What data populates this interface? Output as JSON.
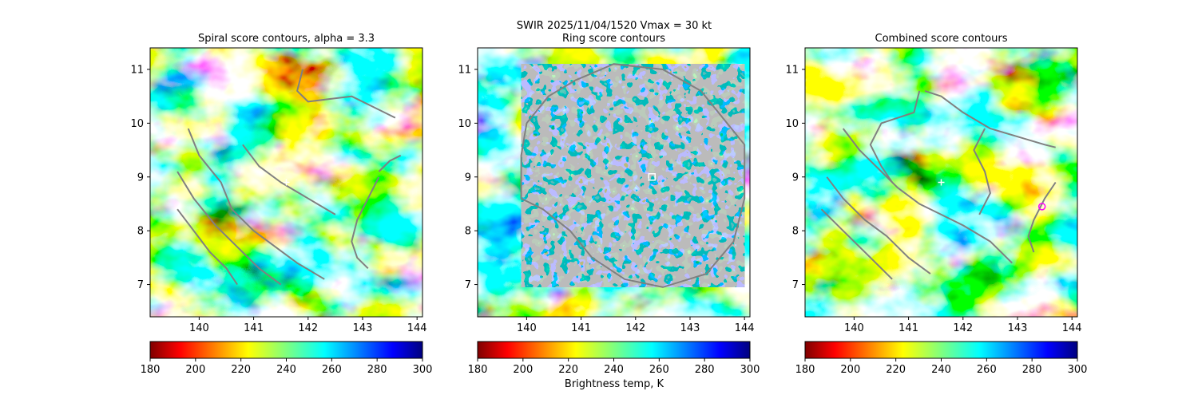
{
  "figure": {
    "suptitle_line1": "SWIR  2025/11/04/1520    Vmax = 30 kt",
    "colorbar_label": "Brightness temp, K"
  },
  "colorbar": {
    "colormap": "jet_r",
    "range": [
      180,
      300
    ],
    "ticks": [
      "180",
      "200",
      "220",
      "240",
      "260",
      "280",
      "300"
    ]
  },
  "chart_data": [
    {
      "type": "heatmap",
      "title": "Spiral score contours, alpha =  3.3",
      "xlim": [
        139.1,
        144.1
      ],
      "ylim": [
        6.4,
        11.4
      ],
      "xticks": [
        "140",
        "141",
        "142",
        "143",
        "144"
      ],
      "yticks": [
        "7",
        "8",
        "9",
        "10",
        "11"
      ],
      "center_marker": {
        "symbol": "plus",
        "color": "#ffffff",
        "x": 141.6,
        "y": 8.9
      },
      "contour_color": "#808080",
      "contours": [
        [
          [
            139.8,
            9.9
          ],
          [
            140.0,
            9.4
          ],
          [
            140.4,
            8.9
          ],
          [
            140.6,
            8.4
          ],
          [
            141.0,
            8.0
          ],
          [
            141.4,
            7.7
          ],
          [
            141.8,
            7.4
          ],
          [
            142.3,
            7.1
          ]
        ],
        [
          [
            139.6,
            9.1
          ],
          [
            139.9,
            8.6
          ],
          [
            140.3,
            8.1
          ],
          [
            140.7,
            7.7
          ],
          [
            141.1,
            7.3
          ],
          [
            141.5,
            7.0
          ]
        ],
        [
          [
            139.6,
            8.4
          ],
          [
            139.9,
            8.0
          ],
          [
            140.2,
            7.6
          ],
          [
            140.5,
            7.3
          ],
          [
            140.7,
            7.0
          ]
        ],
        [
          [
            140.8,
            9.6
          ],
          [
            141.1,
            9.2
          ],
          [
            141.5,
            8.9
          ],
          [
            142.0,
            8.6
          ],
          [
            142.5,
            8.3
          ]
        ],
        [
          [
            141.9,
            11.0
          ],
          [
            141.8,
            10.6
          ],
          [
            142.0,
            10.4
          ],
          [
            142.4,
            10.45
          ],
          [
            142.8,
            10.5
          ],
          [
            143.2,
            10.3
          ],
          [
            143.6,
            10.1
          ]
        ],
        [
          [
            143.3,
            9.0
          ],
          [
            143.1,
            8.6
          ],
          [
            142.9,
            8.2
          ],
          [
            142.8,
            7.8
          ],
          [
            142.9,
            7.5
          ],
          [
            143.1,
            7.3
          ]
        ],
        [
          [
            143.3,
            9.1
          ],
          [
            143.5,
            9.3
          ],
          [
            143.7,
            9.4
          ]
        ]
      ]
    },
    {
      "type": "heatmap",
      "title": "Ring score contours",
      "xlim": [
        139.1,
        144.1
      ],
      "ylim": [
        6.4,
        11.4
      ],
      "xticks": [
        "140",
        "141",
        "142",
        "143",
        "144"
      ],
      "yticks": [
        "7",
        "8",
        "9",
        "10",
        "11"
      ],
      "center_marker": {
        "symbol": "square",
        "color": "#ffffff",
        "x": 142.3,
        "y": 9.0
      },
      "contour_color": "#808080",
      "ring_region": [
        [
          140.9,
          10.8
        ],
        [
          141.6,
          11.1
        ],
        [
          142.5,
          11.0
        ],
        [
          143.2,
          10.6
        ],
        [
          143.6,
          10.1
        ],
        [
          144.0,
          9.6
        ],
        [
          144.0,
          8.6
        ],
        [
          143.8,
          7.8
        ],
        [
          143.3,
          7.2
        ],
        [
          142.5,
          6.95
        ],
        [
          141.8,
          7.1
        ],
        [
          141.2,
          7.5
        ],
        [
          140.8,
          8.0
        ],
        [
          140.3,
          8.4
        ],
        [
          139.9,
          8.6
        ],
        [
          139.9,
          9.4
        ],
        [
          140.0,
          10.0
        ],
        [
          140.4,
          10.5
        ]
      ]
    },
    {
      "type": "heatmap",
      "title": "Combined score contours",
      "xlim": [
        139.1,
        144.1
      ],
      "ylim": [
        6.4,
        11.4
      ],
      "xticks": [
        "140",
        "141",
        "142",
        "143",
        "144"
      ],
      "yticks": [
        "7",
        "8",
        "9",
        "10",
        "11"
      ],
      "center_marker": {
        "symbol": "plus",
        "color": "#ffffff",
        "x": 141.6,
        "y": 8.9
      },
      "secondary_marker": {
        "symbol": "circle",
        "color": "#ff00ff",
        "x": 143.45,
        "y": 8.45
      },
      "contour_color": "#808080",
      "contours": [
        [
          [
            139.5,
            9.0
          ],
          [
            139.8,
            8.6
          ],
          [
            140.2,
            8.2
          ],
          [
            140.6,
            7.9
          ],
          [
            141.0,
            7.5
          ],
          [
            141.4,
            7.2
          ]
        ],
        [
          [
            139.4,
            8.4
          ],
          [
            139.8,
            8.0
          ],
          [
            140.2,
            7.6
          ],
          [
            140.5,
            7.3
          ],
          [
            140.7,
            7.1
          ]
        ],
        [
          [
            139.8,
            9.9
          ],
          [
            140.1,
            9.5
          ],
          [
            140.5,
            9.1
          ],
          [
            140.8,
            8.8
          ],
          [
            141.2,
            8.5
          ],
          [
            141.6,
            8.3
          ],
          [
            142.0,
            8.1
          ],
          [
            142.5,
            7.8
          ],
          [
            142.9,
            7.4
          ]
        ],
        [
          [
            141.3,
            10.6
          ],
          [
            141.6,
            10.5
          ],
          [
            142.0,
            10.2
          ],
          [
            142.5,
            9.9
          ],
          [
            143.0,
            9.75
          ],
          [
            143.5,
            9.6
          ],
          [
            143.7,
            9.55
          ]
        ],
        [
          [
            141.2,
            10.6
          ],
          [
            141.1,
            10.2
          ],
          [
            140.5,
            10.0
          ],
          [
            140.3,
            9.6
          ],
          [
            140.5,
            9.2
          ],
          [
            140.7,
            8.9
          ]
        ],
        [
          [
            142.4,
            9.9
          ],
          [
            142.2,
            9.5
          ],
          [
            142.4,
            9.1
          ],
          [
            142.5,
            8.7
          ],
          [
            142.3,
            8.3
          ]
        ],
        [
          [
            143.7,
            8.9
          ],
          [
            143.5,
            8.6
          ],
          [
            143.3,
            8.2
          ],
          [
            143.2,
            7.9
          ],
          [
            143.3,
            7.6
          ]
        ]
      ]
    }
  ]
}
